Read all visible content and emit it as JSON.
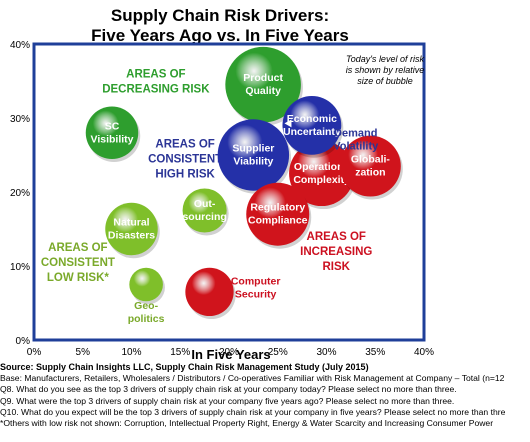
{
  "chart_data": {
    "type": "scatter",
    "title": "Supply Chain Risk Drivers:",
    "subtitle": "Five Years Ago vs. In Five Years",
    "xlabel": "In Five Years",
    "ylabel": "",
    "xlim": [
      0,
      40
    ],
    "ylim": [
      0,
      40
    ],
    "x_ticks": [
      "0%",
      "5%",
      "10%",
      "15%",
      "20%",
      "25%",
      "30%",
      "35%",
      "40%"
    ],
    "y_ticks": [
      "0%",
      "10%",
      "20%",
      "30%",
      "40%"
    ],
    "grid": false,
    "bubble_note": [
      "Today's level of risk",
      "is shown by relative",
      "size of bubble"
    ],
    "colors": {
      "green": "#2e9e2e",
      "lightgreen": "#7fbf2a",
      "navy": "#2430a8",
      "red": "#d0141c",
      "border": "#1f3f99",
      "label_green": "#2e9e2e",
      "label_navy": "#2b3596",
      "label_red": "#cc1020",
      "label_lightgreen": "#7aa92a"
    },
    "points": [
      {
        "label": [
          "Product",
          "Quality"
        ],
        "x": 23.5,
        "y": 34.5,
        "size": 3.6,
        "color": "green",
        "text_color": "#ffffff"
      },
      {
        "label": [
          "SC",
          "Visibility"
        ],
        "x": 8,
        "y": 28,
        "size": 2.5,
        "color": "green",
        "text_color": "#ffffff"
      },
      {
        "label": [
          "Economic",
          "Uncertainty"
        ],
        "x": 28.5,
        "y": 29,
        "size": 2.8,
        "color": "navy",
        "text_color": "#ffffff"
      },
      {
        "label": [
          "Supplier",
          "Viability"
        ],
        "x": 22.5,
        "y": 25,
        "size": 3.4,
        "color": "navy",
        "text_color": "#ffffff"
      },
      {
        "label": [
          "Operations",
          "Complexity"
        ],
        "x": 29.5,
        "y": 22.5,
        "size": 3.1,
        "color": "red",
        "text_color": "#ffffff"
      },
      {
        "label": [
          "Globali-",
          "zation"
        ],
        "x": 34.5,
        "y": 23.5,
        "size": 2.9,
        "color": "red",
        "text_color": "#ffffff"
      },
      {
        "label": [
          "Regulatory",
          "Compliance"
        ],
        "x": 25,
        "y": 17,
        "size": 3.0,
        "color": "red",
        "text_color": "#ffffff"
      },
      {
        "label": [
          "Out-",
          "sourcing"
        ],
        "x": 17.5,
        "y": 17.5,
        "size": 2.1,
        "color": "lightgreen",
        "text_color": "#ffffff"
      },
      {
        "label": [
          "Natural",
          "Disasters"
        ],
        "x": 10,
        "y": 15,
        "size": 2.5,
        "color": "lightgreen",
        "text_color": "#ffffff"
      },
      {
        "label": [
          "Geo-",
          "politics"
        ],
        "x": 11.5,
        "y": 7.5,
        "size": 1.6,
        "color": "lightgreen",
        "text_color": "#7aa92a",
        "label_pos": "below"
      },
      {
        "label": [
          "Computer",
          "Security"
        ],
        "x": 18,
        "y": 6.5,
        "size": 2.3,
        "color": "red",
        "text_color": "#cc1020",
        "label_pos": "right"
      },
      {
        "label": [
          "Demand",
          "Volatility"
        ],
        "x": 33,
        "y": 27,
        "size": 0,
        "color": "none",
        "text_color": "#2b3596",
        "label_pos": "text"
      }
    ],
    "annotations": [
      {
        "text": [
          "AREAS OF",
          "DECREASING RISK"
        ],
        "x": 12.5,
        "y": 35.5,
        "color": "label_green"
      },
      {
        "text": [
          "AREAS OF",
          "CONSISTENT",
          "HIGH RISK"
        ],
        "x": 15.5,
        "y": 26,
        "color": "label_navy"
      },
      {
        "text": [
          "AREAS OF",
          "INCREASING",
          "RISK"
        ],
        "x": 31,
        "y": 13.5,
        "color": "label_red"
      },
      {
        "text": [
          "AREAS OF",
          "CONSISTENT",
          "LOW RISK*"
        ],
        "x": 4.5,
        "y": 12,
        "color": "label_lightgreen"
      }
    ]
  },
  "footer": {
    "source": "Source:  Supply Chain Insights LLC, Supply Chain Risk Management Study (July 2015)",
    "lines": [
      "Base:  Manufacturers, Retailers, Wholesalers / Distributors / Co-operatives Familiar with Risk Management at Company – Total (n=12",
      "Q8. What do you see as the top 3 drivers of supply chain risk at your company today?  Please select no more than three.",
      "Q9. What were the top 3 drivers of supply chain risk at your company five years ago?  Please select no more than three.",
      "Q10. What do you expect will be the top 3 drivers of supply chain risk at your company in five years?  Please select no more than thre",
      "*Others with low risk not shown:  Corruption, Intellectual Property Right, Energy & Water Scarcity and Increasing Consumer Power"
    ]
  }
}
